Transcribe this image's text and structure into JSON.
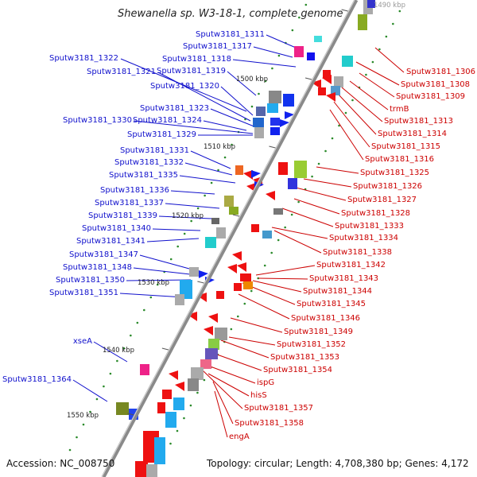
{
  "title": "Shewanella sp. W3-18-1, complete genome",
  "accession": "Accession: NC_008750",
  "topology": "Topology: circular; Length: 4,708,380 bp; Genes: 4,172",
  "kbp_marks": [
    "1490 kbp",
    "1500 kbp",
    "1510 kbp",
    "1520 kbp",
    "1530 kbp",
    "1540 kbp",
    "1550 kbp"
  ],
  "left_labels": [
    "Sputw3181_1311",
    "Sputw3181_1317",
    "Sputw3181_1322",
    "Sputw3181_1318",
    "Sputw3181_1321",
    "Sputw3181_1319",
    "Sputw3181_1320",
    "Sputw3181_1323",
    "Sputw3181_1330",
    "Sputw3181_1324",
    "Sputw3181_1329",
    "Sputw3181_1331",
    "Sputw3181_1332",
    "Sputw3181_1335",
    "Sputw3181_1336",
    "Sputw3181_1337",
    "Sputw3181_1339",
    "Sputw3181_1340",
    "Sputw3181_1341",
    "Sputw3181_1347",
    "Sputw3181_1348",
    "Sputw3181_1350",
    "Sputw3181_1351",
    "xseA",
    "Sputw3181_1364"
  ],
  "right_labels": [
    "Sputw3181_1306",
    "Sputw3181_1308",
    "Sputw3181_1309",
    "trmB",
    "Sputw3181_1313",
    "Sputw3181_1314",
    "Sputw3181_1315",
    "Sputw3181_1316",
    "Sputw3181_1325",
    "Sputw3181_1326",
    "Sputw3181_1327",
    "Sputw3181_1328",
    "Sputw3181_1333",
    "Sputw3181_1334",
    "Sputw3181_1338",
    "Sputw3181_1342",
    "Sputw3181_1343",
    "Sputw3181_1344",
    "Sputw3181_1345",
    "Sputw3181_1346",
    "Sputw3181_1349",
    "Sputw3181_1352",
    "Sputw3181_1353",
    "Sputw3181_1354",
    "ispG",
    "hisS",
    "Sputw3181_1357",
    "Sputw3181_1358",
    "engA"
  ],
  "colors": {
    "left_label": "#1010cc",
    "right_label": "#cc0000",
    "backbone": "#8a8a8a",
    "tick": "#2a8a2a"
  }
}
